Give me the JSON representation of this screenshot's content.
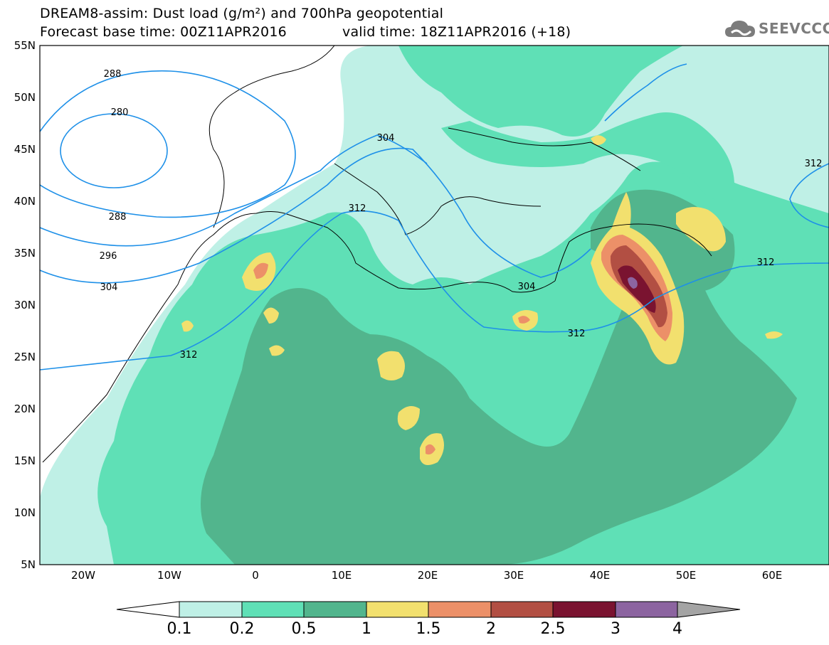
{
  "title_line1": "DREAM8-assim: Dust load (g/m²) and 700hPa geopotential",
  "title_base": "Forecast base time: 00Z11APR2016",
  "title_valid": "valid time: 18Z11APR2016 (+18)",
  "logo_text": "SEEVCCC",
  "lat_labels": [
    "55N",
    "50N",
    "45N",
    "40N",
    "35N",
    "30N",
    "25N",
    "20N",
    "15N",
    "10N",
    "5N"
  ],
  "lon_labels": [
    "20W",
    "10W",
    "0",
    "10E",
    "20E",
    "30E",
    "40E",
    "50E",
    "60E"
  ],
  "contour_labels": [
    "288",
    "280",
    "304",
    "288",
    "296",
    "304",
    "312",
    "312",
    "304",
    "312",
    "312",
    "312"
  ],
  "colorbar_labels": [
    "0.1",
    "0.2",
    "0.5",
    "1",
    "1.5",
    "2",
    "2.5",
    "3",
    "4"
  ],
  "colors": {
    "c1": "#bff0e6",
    "c2": "#5fe0b6",
    "c3": "#52b58d",
    "c4": "#f2e06e",
    "c5": "#ec9068",
    "c6": "#b24f43",
    "c7": "#7a1330",
    "c8": "#8c64a0",
    "over": "#a4a4a4",
    "contour": "#1e90e8"
  }
}
